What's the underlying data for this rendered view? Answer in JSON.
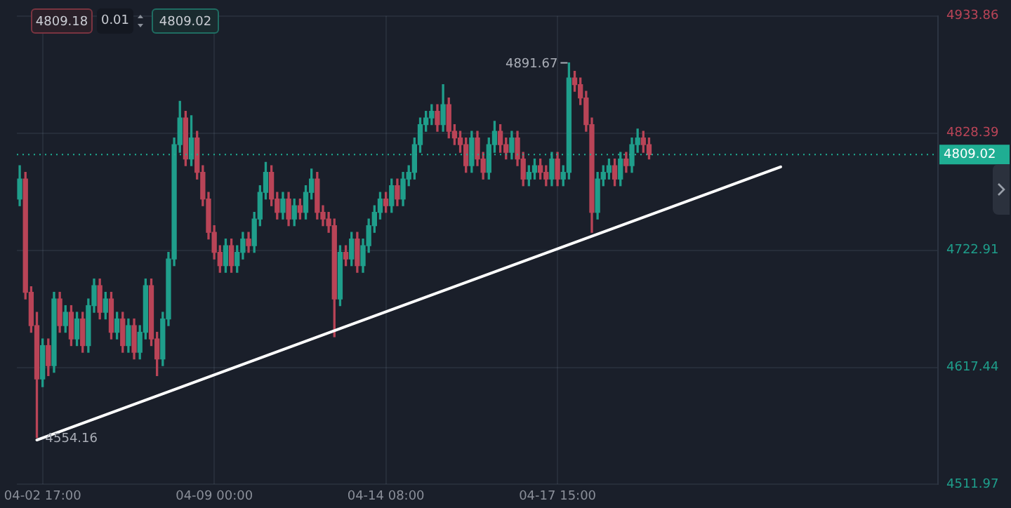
{
  "chart_data": {
    "type": "candlestick",
    "categories": [
      null,
      null,
      null,
      null,
      "04-02 17:00",
      null,
      null,
      null,
      null,
      null,
      null,
      null,
      null,
      null,
      null,
      null,
      null,
      null,
      null,
      null,
      null,
      null,
      null,
      null,
      null,
      null,
      null,
      null,
      null,
      null,
      null,
      null,
      null,
      null,
      "04-09 00:00",
      null,
      null,
      null,
      null,
      null,
      null,
      null,
      null,
      null,
      null,
      null,
      null,
      null,
      null,
      null,
      null,
      null,
      null,
      null,
      null,
      null,
      null,
      null,
      null,
      null,
      null,
      null,
      null,
      null,
      "04-14 08:00",
      null,
      null,
      null,
      null,
      null,
      null,
      null,
      null,
      null,
      null,
      null,
      null,
      null,
      null,
      null,
      null,
      null,
      null,
      null,
      null,
      null,
      null,
      null,
      null,
      null,
      null,
      null,
      null,
      null,
      "04-17 15:00",
      null,
      null,
      null,
      null,
      null,
      null,
      null,
      null,
      null,
      null,
      null,
      null,
      null,
      null,
      null,
      null,
      null,
      null,
      null,
      null,
      null,
      null,
      null,
      null,
      null,
      null,
      null,
      null,
      null,
      null,
      null,
      null,
      null,
      null,
      null,
      null,
      null,
      null,
      null,
      null,
      null,
      null,
      null,
      null,
      null,
      null,
      null,
      null,
      null,
      null,
      null,
      null,
      null,
      null,
      null,
      null,
      null,
      null,
      null,
      null,
      null,
      null,
      null,
      null,
      null,
      null
    ],
    "ohlc": [
      [
        4769,
        4799,
        4763,
        4787
      ],
      [
        4787,
        4793,
        4679,
        4685
      ],
      [
        4685,
        4690,
        4649,
        4655
      ],
      [
        4655,
        4667,
        4554.16,
        4607
      ],
      [
        4607,
        4643,
        4600,
        4637
      ],
      [
        4637,
        4643,
        4610,
        4619
      ],
      [
        4619,
        4685,
        4613,
        4679
      ],
      [
        4679,
        4685,
        4649,
        4655
      ],
      [
        4655,
        4673,
        4649,
        4667
      ],
      [
        4667,
        4673,
        4637,
        4643
      ],
      [
        4643,
        4667,
        4637,
        4661
      ],
      [
        4661,
        4667,
        4631,
        4637
      ],
      [
        4637,
        4679,
        4631,
        4673
      ],
      [
        4673,
        4697,
        4667,
        4691
      ],
      [
        4691,
        4697,
        4661,
        4667
      ],
      [
        4667,
        4685,
        4661,
        4679
      ],
      [
        4679,
        4685,
        4643,
        4649
      ],
      [
        4649,
        4667,
        4643,
        4661
      ],
      [
        4661,
        4667,
        4631,
        4637
      ],
      [
        4637,
        4661,
        4631,
        4655
      ],
      [
        4655,
        4661,
        4625,
        4631
      ],
      [
        4631,
        4655,
        4625,
        4649
      ],
      [
        4649,
        4697,
        4643,
        4691
      ],
      [
        4691,
        4697,
        4637,
        4643
      ],
      [
        4643,
        4649,
        4610,
        4625
      ],
      [
        4625,
        4667,
        4619,
        4661
      ],
      [
        4661,
        4721,
        4655,
        4715
      ],
      [
        4715,
        4824,
        4709,
        4818
      ],
      [
        4818,
        4857,
        4811,
        4842
      ],
      [
        4842,
        4848,
        4799,
        4805
      ],
      [
        4805,
        4844,
        4799,
        4824
      ],
      [
        4824,
        4830,
        4787,
        4793
      ],
      [
        4793,
        4799,
        4763,
        4769
      ],
      [
        4769,
        4775,
        4733,
        4739
      ],
      [
        4739,
        4745,
        4715,
        4721
      ],
      [
        4721,
        4727,
        4703,
        4709
      ],
      [
        4709,
        4733,
        4703,
        4727
      ],
      [
        4727,
        4733,
        4703,
        4709
      ],
      [
        4709,
        4727,
        4703,
        4721
      ],
      [
        4721,
        4739,
        4715,
        4733
      ],
      [
        4733,
        4739,
        4721,
        4727
      ],
      [
        4727,
        4757,
        4721,
        4751
      ],
      [
        4751,
        4781,
        4745,
        4775
      ],
      [
        4775,
        4802,
        4769,
        4793
      ],
      [
        4793,
        4799,
        4763,
        4769
      ],
      [
        4769,
        4775,
        4751,
        4757
      ],
      [
        4757,
        4775,
        4751,
        4769
      ],
      [
        4769,
        4775,
        4745,
        4751
      ],
      [
        4751,
        4769,
        4745,
        4763
      ],
      [
        4763,
        4769,
        4751,
        4757
      ],
      [
        4757,
        4781,
        4751,
        4775
      ],
      [
        4775,
        4796,
        4769,
        4787
      ],
      [
        4787,
        4793,
        4751,
        4757
      ],
      [
        4757,
        4763,
        4745,
        4751
      ],
      [
        4751,
        4757,
        4739,
        4745
      ],
      [
        4745,
        4751,
        4645,
        4679
      ],
      [
        4679,
        4727,
        4673,
        4721
      ],
      [
        4721,
        4727,
        4709,
        4715
      ],
      [
        4715,
        4739,
        4709,
        4733
      ],
      [
        4733,
        4739,
        4703,
        4709
      ],
      [
        4709,
        4733,
        4703,
        4727
      ],
      [
        4727,
        4751,
        4721,
        4745
      ],
      [
        4745,
        4763,
        4739,
        4757
      ],
      [
        4757,
        4775,
        4751,
        4769
      ],
      [
        4769,
        4775,
        4757,
        4763
      ],
      [
        4763,
        4787,
        4757,
        4781
      ],
      [
        4781,
        4787,
        4763,
        4769
      ],
      [
        4769,
        4793,
        4763,
        4787
      ],
      [
        4787,
        4799,
        4781,
        4793
      ],
      [
        4793,
        4824,
        4787,
        4818
      ],
      [
        4818,
        4842,
        4811,
        4836
      ],
      [
        4836,
        4848,
        4830,
        4842
      ],
      [
        4842,
        4854,
        4836,
        4848
      ],
      [
        4848,
        4854,
        4830,
        4836
      ],
      [
        4836,
        4872,
        4830,
        4854
      ],
      [
        4854,
        4860,
        4824,
        4830
      ],
      [
        4830,
        4836,
        4818,
        4824
      ],
      [
        4824,
        4830,
        4811,
        4818
      ],
      [
        4818,
        4824,
        4793,
        4799
      ],
      [
        4799,
        4830,
        4793,
        4824
      ],
      [
        4824,
        4830,
        4799,
        4805
      ],
      [
        4805,
        4811,
        4787,
        4793
      ],
      [
        4793,
        4824,
        4787,
        4818
      ],
      [
        4818,
        4839,
        4811,
        4830
      ],
      [
        4830,
        4836,
        4811,
        4818
      ],
      [
        4818,
        4824,
        4805,
        4811
      ],
      [
        4811,
        4830,
        4805,
        4824
      ],
      [
        4824,
        4830,
        4799,
        4805
      ],
      [
        4805,
        4811,
        4781,
        4787
      ],
      [
        4787,
        4799,
        4781,
        4793
      ],
      [
        4793,
        4805,
        4787,
        4799
      ],
      [
        4799,
        4805,
        4787,
        4793
      ],
      [
        4793,
        4799,
        4781,
        4787
      ],
      [
        4787,
        4811,
        4781,
        4805
      ],
      [
        4805,
        4811,
        4781,
        4787
      ],
      [
        4787,
        4799,
        4781,
        4793
      ],
      [
        4793,
        4891.67,
        4787,
        4878
      ],
      [
        4878,
        4884,
        4866,
        4872
      ],
      [
        4872,
        4878,
        4854,
        4860
      ],
      [
        4860,
        4866,
        4830,
        4836
      ],
      [
        4836,
        4842,
        4739,
        4757
      ],
      [
        4757,
        4793,
        4751,
        4787
      ],
      [
        4787,
        4799,
        4781,
        4793
      ],
      [
        4793,
        4805,
        4787,
        4799
      ],
      [
        4799,
        4805,
        4781,
        4787
      ],
      [
        4787,
        4811,
        4781,
        4805
      ],
      [
        4805,
        4811,
        4793,
        4799
      ],
      [
        4799,
        4824,
        4793,
        4818
      ],
      [
        4818,
        4832,
        4811,
        4824
      ],
      [
        4824,
        4830,
        4811,
        4818
      ],
      [
        4818,
        4824,
        4805,
        4809.02
      ],
      null,
      null,
      null,
      null,
      null,
      null,
      null,
      null,
      null,
      null,
      null,
      null,
      null,
      null,
      null,
      null,
      null,
      null,
      null,
      null,
      null,
      null,
      null,
      null,
      null,
      null,
      null,
      null,
      null,
      null,
      null,
      null,
      null,
      null,
      null,
      null,
      null,
      null,
      null,
      null,
      null,
      null,
      null,
      null,
      null,
      null,
      null,
      null,
      null,
      null
    ],
    "series": [
      {
        "type": "line",
        "color": "#ffffff",
        "values": [
          null,
          null,
          null,
          4552,
          null,
          null,
          null,
          null,
          null,
          null,
          null,
          null,
          null,
          null,
          null,
          null,
          null,
          null,
          null,
          null,
          null,
          null,
          null,
          null,
          null,
          null,
          null,
          null,
          null,
          null,
          null,
          null,
          null,
          null,
          null,
          null,
          null,
          null,
          null,
          null,
          null,
          null,
          null,
          null,
          null,
          null,
          null,
          null,
          null,
          null,
          null,
          null,
          null,
          null,
          null,
          null,
          null,
          null,
          null,
          null,
          null,
          null,
          null,
          null,
          null,
          null,
          null,
          null,
          null,
          null,
          null,
          null,
          null,
          null,
          null,
          null,
          null,
          null,
          null,
          null,
          null,
          null,
          null,
          null,
          null,
          null,
          null,
          null,
          null,
          null,
          null,
          null,
          null,
          null,
          null,
          null,
          null,
          null,
          null,
          null,
          null,
          null,
          null,
          null,
          null,
          null,
          null,
          null,
          null,
          null,
          null,
          null,
          null,
          null,
          null,
          null,
          null,
          null,
          null,
          null,
          null,
          null,
          null,
          null,
          null,
          null,
          null,
          null,
          null,
          null,
          null,
          null,
          null,
          4798,
          null,
          null,
          null,
          null,
          null,
          null,
          null,
          null,
          null,
          null,
          null,
          null,
          null,
          null,
          null,
          null,
          null,
          null,
          null,
          null,
          null,
          null,
          null,
          null,
          null,
          null,
          null
        ]
      }
    ],
    "ylim": [
      4511.97,
      4933.86
    ],
    "yticks": [
      4511.97,
      4617.44,
      4722.91,
      4828.39,
      4933.86
    ],
    "grid": true,
    "ref_lines": [
      {
        "axis": "y",
        "value": 4809.02,
        "label": "4809.02",
        "color": "#1fae93",
        "line_style": "dotted"
      }
    ],
    "annotations": [
      "4809.18",
      "0.01",
      "4809.02",
      "4891.67",
      "4554.16"
    ]
  }
}
